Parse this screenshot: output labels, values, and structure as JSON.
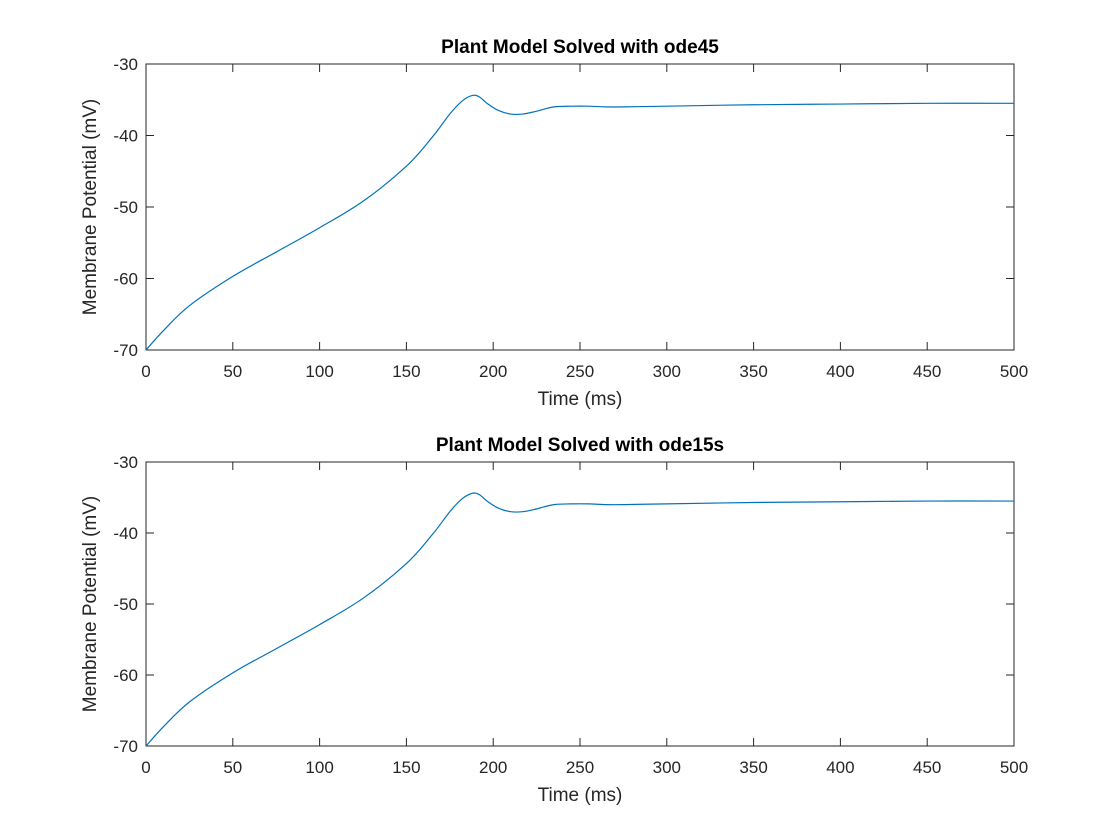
{
  "colors": {
    "series": "#0072BD",
    "axes": "#262626",
    "background": "#ffffff"
  },
  "chart_data": [
    {
      "type": "line",
      "title": "Plant Model Solved with ode45",
      "xlabel": "Time (ms)",
      "ylabel": "Membrane Potential (mV)",
      "xlim": [
        0,
        500
      ],
      "ylim": [
        -70,
        -30
      ],
      "xticks": [
        0,
        50,
        100,
        150,
        200,
        250,
        300,
        350,
        400,
        450,
        500
      ],
      "yticks": [
        -70,
        -60,
        -50,
        -40,
        -30
      ],
      "grid": false,
      "series": [
        {
          "x": [
            0,
            10,
            25,
            50,
            75,
            100,
            125,
            150,
            165,
            175,
            182,
            188,
            192,
            197,
            203,
            210,
            217,
            225,
            235,
            245,
            255,
            265,
            275,
            300,
            350,
            400,
            450,
            500
          ],
          "y": [
            -70,
            -67.3,
            -63.8,
            -59.7,
            -56.3,
            -52.9,
            -49.2,
            -44.3,
            -40.2,
            -37.0,
            -35.2,
            -34.4,
            -34.6,
            -35.6,
            -36.5,
            -37.0,
            -37.0,
            -36.6,
            -36.0,
            -35.9,
            -35.9,
            -36.0,
            -36.0,
            -35.9,
            -35.7,
            -35.6,
            -35.5,
            -35.5
          ]
        }
      ]
    },
    {
      "type": "line",
      "title": "Plant Model Solved with ode15s",
      "xlabel": "Time (ms)",
      "ylabel": "Membrane Potential (mV)",
      "xlim": [
        0,
        500
      ],
      "ylim": [
        -70,
        -30
      ],
      "xticks": [
        0,
        50,
        100,
        150,
        200,
        250,
        300,
        350,
        400,
        450,
        500
      ],
      "yticks": [
        -70,
        -60,
        -50,
        -40,
        -30
      ],
      "grid": false,
      "series": [
        {
          "x": [
            0,
            10,
            25,
            50,
            75,
            100,
            125,
            150,
            165,
            175,
            182,
            188,
            192,
            197,
            203,
            210,
            217,
            225,
            235,
            245,
            255,
            265,
            275,
            300,
            350,
            400,
            450,
            500
          ],
          "y": [
            -70,
            -67.3,
            -63.8,
            -59.7,
            -56.3,
            -52.9,
            -49.2,
            -44.3,
            -40.2,
            -37.0,
            -35.2,
            -34.4,
            -34.6,
            -35.6,
            -36.5,
            -37.0,
            -37.0,
            -36.6,
            -36.0,
            -35.9,
            -35.9,
            -36.0,
            -36.0,
            -35.9,
            -35.7,
            -35.6,
            -35.5,
            -35.5
          ]
        }
      ]
    }
  ]
}
